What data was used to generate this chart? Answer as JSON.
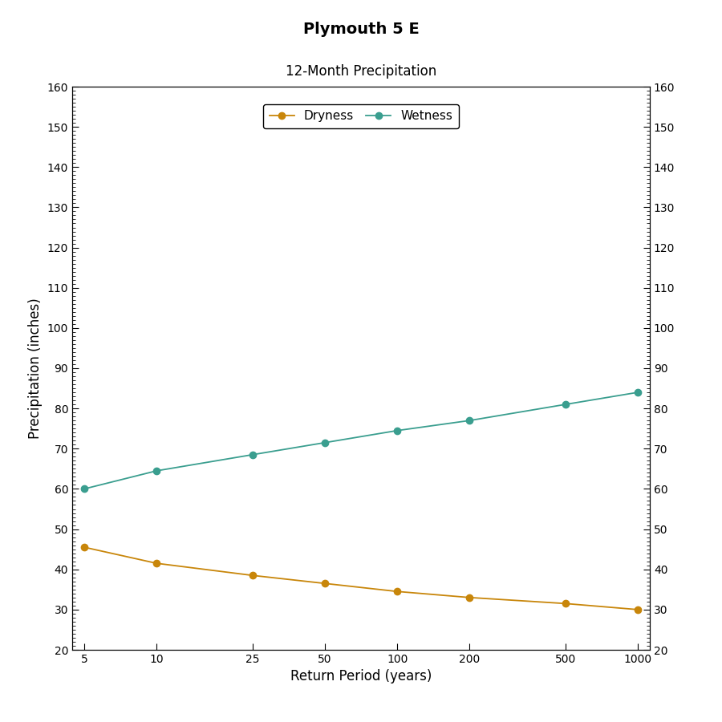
{
  "title": "Plymouth 5 E",
  "subtitle": "12-Month Precipitation",
  "xlabel": "Return Period (years)",
  "ylabel": "Precipitation (inches)",
  "x_values": [
    5,
    10,
    25,
    50,
    100,
    200,
    500,
    1000
  ],
  "dryness_values": [
    45.5,
    41.5,
    38.5,
    36.5,
    34.5,
    33.0,
    31.5,
    30.0
  ],
  "wetness_values": [
    60.0,
    64.5,
    68.5,
    71.5,
    74.5,
    77.0,
    81.0,
    84.0
  ],
  "dryness_color": "#C8860A",
  "wetness_color": "#3A9E8F",
  "ylim": [
    20,
    160
  ],
  "yticks": [
    20,
    30,
    40,
    50,
    60,
    70,
    80,
    90,
    100,
    110,
    120,
    130,
    140,
    150,
    160
  ],
  "background_color": "#FFFFFF",
  "plot_bg_color": "#FFFFFF",
  "legend_labels": [
    "Dryness",
    "Wetness"
  ],
  "title_fontsize": 14,
  "subtitle_fontsize": 12,
  "axis_label_fontsize": 12,
  "tick_fontsize": 10,
  "legend_fontsize": 11,
  "linewidth": 1.3,
  "markersize": 6
}
